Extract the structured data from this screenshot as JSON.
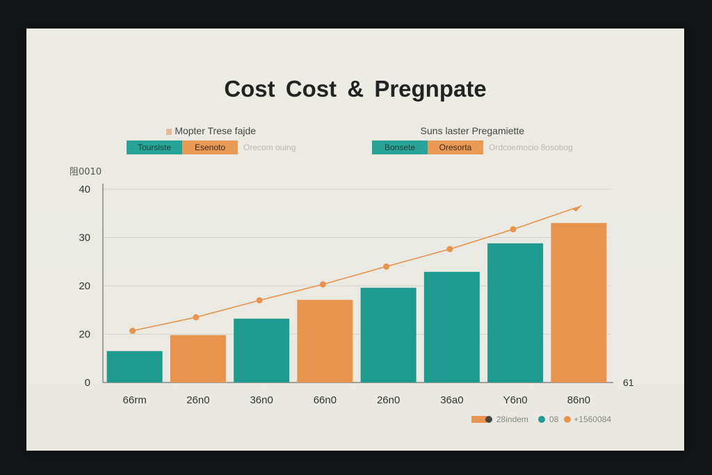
{
  "chart_data": {
    "type": "bar",
    "title": "Cost Cost  &  Pregnpate",
    "ylabel": "阻0010",
    "y_ticks": [
      "0",
      "20",
      "20",
      "30",
      "40"
    ],
    "ylim": [
      0,
      40
    ],
    "grid": true,
    "categories": [
      "66rm",
      "26n0",
      "36n0",
      "66n0",
      "26n0",
      "36a0",
      "Y6n0",
      "86n0"
    ],
    "values": [
      6.5,
      9.8,
      13.2,
      17.1,
      19.6,
      22.9,
      28.8,
      33.0
    ],
    "bar_colors": [
      "teal",
      "orange",
      "teal",
      "orange",
      "teal",
      "teal",
      "teal",
      "orange"
    ],
    "series": [
      {
        "name": "",
        "type": "line",
        "values": [
          10.7,
          13.5,
          17.0,
          20.3,
          24.0,
          27.6,
          31.7,
          36.2
        ]
      }
    ],
    "x_end_label": "61",
    "colors": {
      "teal": "#1f9a8e",
      "orange": "#e8944f",
      "line": "#e8944f"
    }
  },
  "legend_left": {
    "caption": "Mopter Trese fajde",
    "chip1": "Toursiste",
    "chip2": "Esenoto",
    "note": "Orecom ouing"
  },
  "legend_right": {
    "caption": "Suns laster Pregamiette",
    "chip1": "Bonsete",
    "chip2": "Oresorta",
    "note": "Ordcoemocio 8osobog"
  },
  "bottom_legend": {
    "item1": "28indem",
    "item2": "08",
    "item3": "+1560084"
  }
}
